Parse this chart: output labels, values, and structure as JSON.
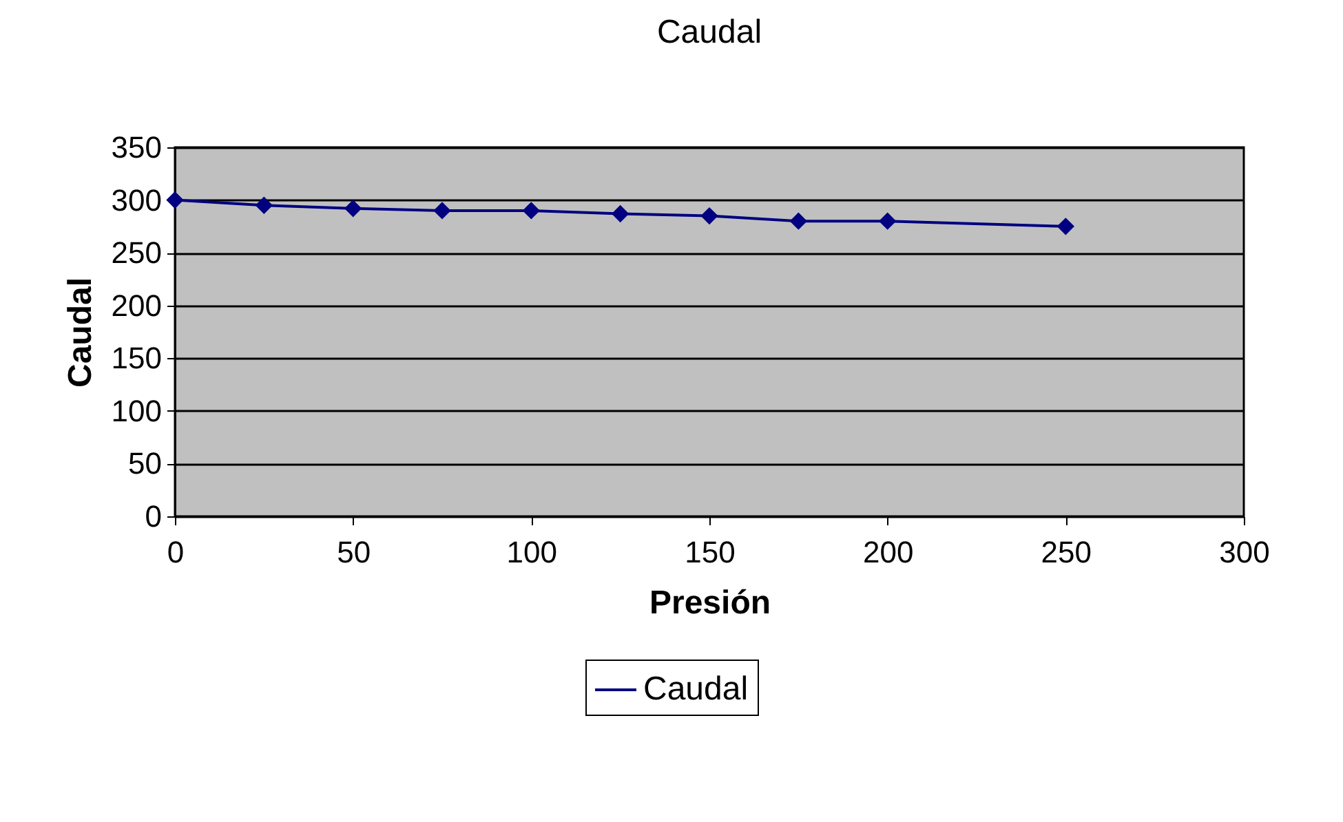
{
  "chart_data": {
    "type": "line",
    "title": "Caudal",
    "xlabel": "Presión",
    "ylabel": "Caudal",
    "x": [
      0,
      25,
      50,
      75,
      100,
      125,
      150,
      175,
      200,
      250
    ],
    "series": [
      {
        "name": "Caudal",
        "color": "#000080",
        "values": [
          300,
          295,
          292,
          290,
          290,
          287,
          285,
          280,
          280,
          275
        ]
      }
    ],
    "xlim": [
      0,
      300
    ],
    "xticks": [
      0,
      50,
      100,
      150,
      200,
      250,
      300
    ],
    "ylim": [
      0,
      350
    ],
    "yticks": [
      0,
      50,
      100,
      150,
      200,
      250,
      300,
      350
    ],
    "grid": "y",
    "legend": "bottom",
    "marker": "diamond",
    "line_style": "solid"
  }
}
